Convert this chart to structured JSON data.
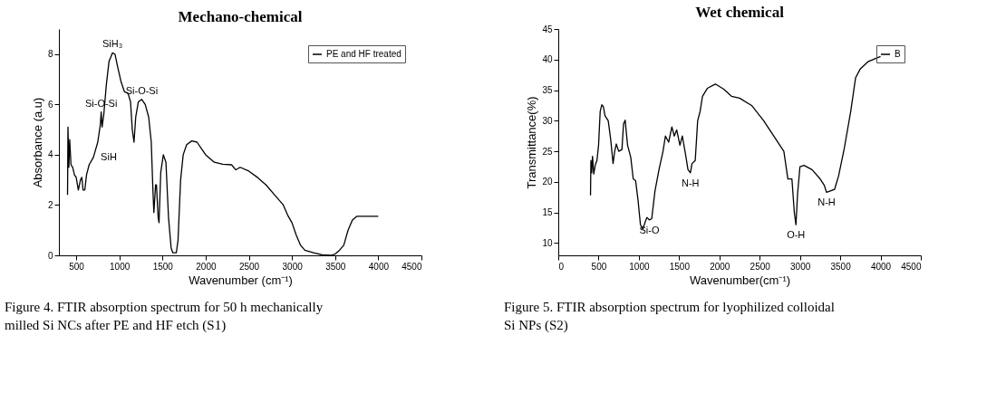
{
  "chart_data": [
    {
      "type": "line",
      "title": "Mechano-chemical",
      "xlabel": "Wavenumber (cm⁻¹)",
      "ylabel": "Absorbance (a.u)",
      "xlim": [
        300,
        4500
      ],
      "xticks": [
        500,
        1000,
        1500,
        2000,
        2500,
        3000,
        3500,
        4000,
        4500
      ],
      "ylim": [
        0,
        9
      ],
      "yticks": [
        0,
        2,
        4,
        6,
        8
      ],
      "legend": "top right",
      "grid": false,
      "x": [
        400,
        405,
        415,
        425,
        440,
        460,
        480,
        500,
        525,
        550,
        565,
        580,
        600,
        620,
        650,
        700,
        750,
        780,
        790,
        800,
        820,
        850,
        880,
        920,
        950,
        980,
        1020,
        1060,
        1100,
        1130,
        1150,
        1170,
        1190,
        1220,
        1260,
        1300,
        1340,
        1370,
        1390,
        1400,
        1420,
        1430,
        1450,
        1460,
        1480,
        1510,
        1540,
        1570,
        1600,
        1620,
        1660,
        1680,
        1710,
        1740,
        1780,
        1840,
        1900,
        1960,
        2000,
        2100,
        2200,
        2300,
        2350,
        2400,
        2500,
        2600,
        2700,
        2800,
        2900,
        2950,
        3000,
        3050,
        3100,
        3150,
        3250,
        3350,
        3450,
        3500,
        3550,
        3600,
        3650,
        3700,
        3750,
        3800,
        3900,
        4000
      ],
      "series": [
        {
          "name": "PE and HF treated",
          "color": "#000000",
          "values": [
            2.4,
            5.1,
            3.5,
            4.6,
            3.6,
            3.5,
            3.2,
            3.1,
            2.6,
            3.0,
            3.1,
            2.6,
            2.6,
            3.2,
            3.6,
            3.9,
            4.5,
            5.2,
            5.7,
            5.1,
            5.6,
            6.8,
            7.7,
            8.05,
            8.0,
            7.5,
            6.9,
            6.5,
            6.45,
            6.1,
            5.0,
            4.5,
            5.5,
            6.1,
            6.2,
            6.0,
            5.5,
            4.5,
            2.5,
            1.7,
            2.8,
            2.8,
            1.5,
            1.3,
            3.3,
            4.0,
            3.7,
            1.5,
            0.3,
            0.1,
            0.1,
            0.6,
            3.0,
            4.0,
            4.4,
            4.55,
            4.5,
            4.2,
            4.0,
            3.7,
            3.62,
            3.6,
            3.4,
            3.5,
            3.35,
            3.1,
            2.8,
            2.4,
            2.0,
            1.6,
            1.3,
            0.8,
            0.4,
            0.2,
            0.1,
            0.02,
            0.0,
            0.05,
            0.2,
            0.4,
            1.0,
            1.4,
            1.55,
            1.55,
            1.55,
            1.55
          ]
        }
      ],
      "annotations": [
        {
          "text": "Si-O-Si",
          "x": 790,
          "y": 5.7
        },
        {
          "text": "SiH₃",
          "x": 920,
          "y": 8.05
        },
        {
          "text": "Si-O-Si",
          "x": 1260,
          "y": 6.2
        },
        {
          "text": "SiH",
          "x": 700,
          "y": 3.9
        },
        "Figure 4. FTIR absorption spectrum for 50 h mechanically milled Si NCs after PE and HF etch (S1)"
      ]
    },
    {
      "type": "line",
      "title": "Wet chemical",
      "xlabel": "Wavenumber(cm⁻¹)",
      "ylabel": "Transmittance(%)",
      "xlim": [
        0,
        4500
      ],
      "xticks": [
        0,
        500,
        1000,
        1500,
        2000,
        2500,
        3000,
        3500,
        4000,
        4500
      ],
      "ylim": [
        8,
        45
      ],
      "yticks": [
        10,
        15,
        20,
        25,
        30,
        35,
        40,
        45
      ],
      "legend": "top right",
      "grid": false,
      "x": [
        400,
        405,
        415,
        425,
        440,
        460,
        480,
        500,
        520,
        540,
        560,
        580,
        620,
        650,
        680,
        700,
        720,
        750,
        790,
        810,
        830,
        860,
        900,
        930,
        960,
        990,
        1020,
        1050,
        1080,
        1100,
        1130,
        1160,
        1200,
        1250,
        1300,
        1330,
        1370,
        1410,
        1440,
        1470,
        1510,
        1540,
        1580,
        1610,
        1640,
        1660,
        1700,
        1730,
        1760,
        1790,
        1850,
        1950,
        2050,
        2150,
        2250,
        2400,
        2550,
        2700,
        2800,
        2850,
        2900,
        2930,
        2950,
        2970,
        3000,
        3050,
        3150,
        3250,
        3300,
        3330,
        3370,
        3430,
        3480,
        3550,
        3630,
        3690,
        3750,
        3850,
        4000
      ],
      "series": [
        {
          "name": "B",
          "color": "#000000",
          "values": [
            17.8,
            23.5,
            21.5,
            24.2,
            21.3,
            22.8,
            23.5,
            26,
            31.5,
            32.6,
            32.3,
            30.8,
            30,
            27,
            23,
            25,
            26.2,
            25,
            25.3,
            29.5,
            30.1,
            26,
            24,
            20.5,
            20.2,
            17,
            13,
            12.3,
            13.5,
            14.2,
            13.8,
            14,
            18.5,
            22,
            25,
            27.5,
            26.5,
            29,
            27.5,
            28.5,
            26,
            27.5,
            24.5,
            22,
            21.5,
            23,
            23.5,
            30,
            31.5,
            34,
            35.3,
            36,
            35.2,
            34,
            33.7,
            32.5,
            30,
            27,
            25,
            20.5,
            20.5,
            15,
            13,
            18,
            22.5,
            22.7,
            22,
            20.5,
            19.5,
            18.3,
            18.5,
            18.8,
            21,
            25.5,
            31.5,
            37,
            38.5,
            39.7,
            40.5
          ]
        }
      ],
      "annotations": [
        {
          "text": "Si-O",
          "x": 1130,
          "y": 13.8
        },
        {
          "text": "N-H",
          "x": 1640,
          "y": 21.5
        },
        {
          "text": "O-H",
          "x": 2950,
          "y": 13
        },
        {
          "text": "N-H",
          "x": 3330,
          "y": 18.3
        },
        "Figure 5. FTIR absorption spectrum for lyophilized colloidal Si NPs (S2)"
      ]
    }
  ]
}
